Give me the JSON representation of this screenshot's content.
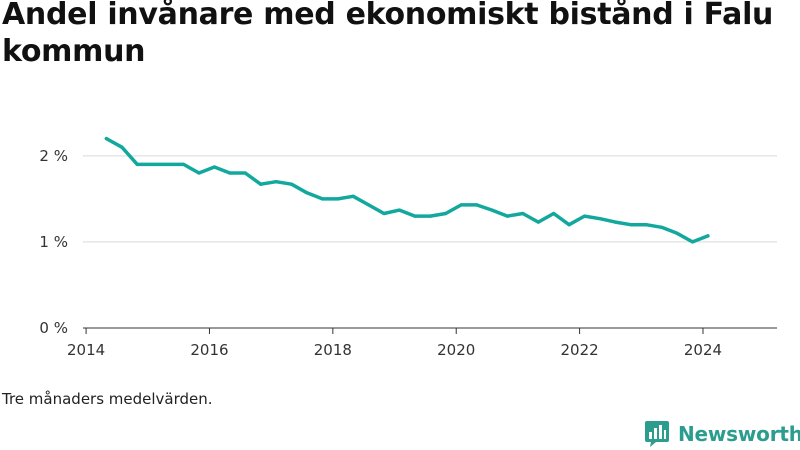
{
  "title": "Andel invånare med ekonomiskt bistånd i Falu kommun",
  "caption": "Tre månaders medelvärden.",
  "brand": {
    "name": "Newsworthy",
    "logo_icon": "bar-chart-bubble-icon",
    "color": "#2a9d8f"
  },
  "chart_data": {
    "type": "line",
    "title": "Andel invånare med ekonomiskt bistånd i Falu kommun",
    "xlabel": "",
    "ylabel": "",
    "x_ticks": [
      "2014",
      "2016",
      "2018",
      "2020",
      "2022",
      "2024"
    ],
    "y_ticks": [
      {
        "value": 0,
        "label": "0 %"
      },
      {
        "value": 1,
        "label": "1 %"
      },
      {
        "value": 2,
        "label": "2 %"
      }
    ],
    "xlim": [
      2013.95,
      2025.2
    ],
    "ylim": [
      0,
      2.3
    ],
    "grid": true,
    "line_color": "#13a89e",
    "series": [
      {
        "x": [
          2014.33,
          2014.58,
          2014.83,
          2015.08,
          2015.33,
          2015.58,
          2015.83,
          2016.08,
          2016.33,
          2016.58,
          2016.83,
          2017.08,
          2017.33,
          2017.58,
          2017.83,
          2018.08,
          2018.33,
          2018.58,
          2018.83,
          2019.08,
          2019.33,
          2019.58,
          2019.83,
          2020.08,
          2020.33,
          2020.58,
          2020.83,
          2021.08,
          2021.33,
          2021.58,
          2021.83,
          2022.08,
          2022.33,
          2022.58,
          2022.83,
          2023.08,
          2023.33,
          2023.58,
          2023.83,
          2024.08
        ],
        "values": [
          2.2,
          2.1,
          1.9,
          1.9,
          1.9,
          1.9,
          1.8,
          1.87,
          1.8,
          1.8,
          1.67,
          1.7,
          1.67,
          1.57,
          1.5,
          1.5,
          1.53,
          1.43,
          1.33,
          1.37,
          1.3,
          1.3,
          1.33,
          1.43,
          1.43,
          1.37,
          1.3,
          1.33,
          1.23,
          1.33,
          1.2,
          1.3,
          1.27,
          1.23,
          1.2,
          1.2,
          1.17,
          1.1,
          1.0,
          1.07
        ]
      }
    ]
  }
}
